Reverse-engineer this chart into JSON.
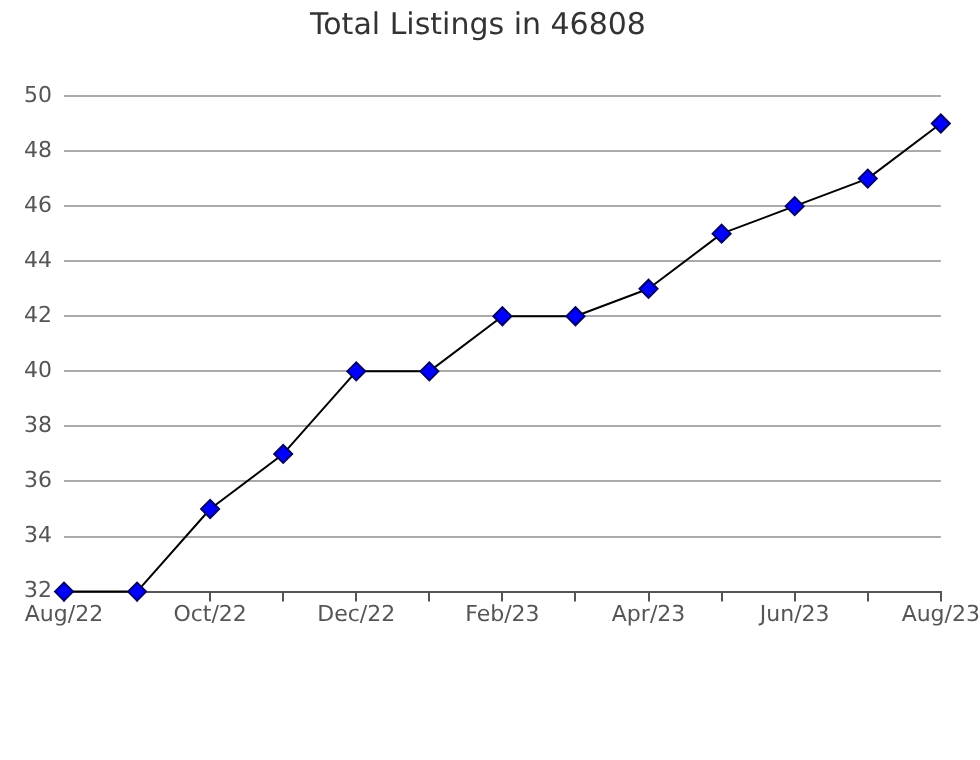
{
  "chart_data": {
    "type": "line",
    "title": "Total Listings in 46808",
    "categories": [
      "Aug/22",
      null,
      "Oct/22",
      null,
      "Dec/22",
      null,
      "Feb/23",
      null,
      "Apr/23",
      null,
      "Jun/23",
      null,
      "Aug/23"
    ],
    "series": [
      {
        "color": "#0000ff",
        "values": [
          32,
          32,
          35,
          37,
          40,
          40,
          42,
          42,
          43,
          45,
          46,
          47,
          49
        ]
      }
    ],
    "ylim": [
      32,
      50
    ],
    "yticks": [
      32,
      34,
      36,
      38,
      40,
      42,
      44,
      46,
      48,
      50
    ],
    "grid": "y",
    "marker": "diamond",
    "line_style": "solid",
    "legend": false
  }
}
